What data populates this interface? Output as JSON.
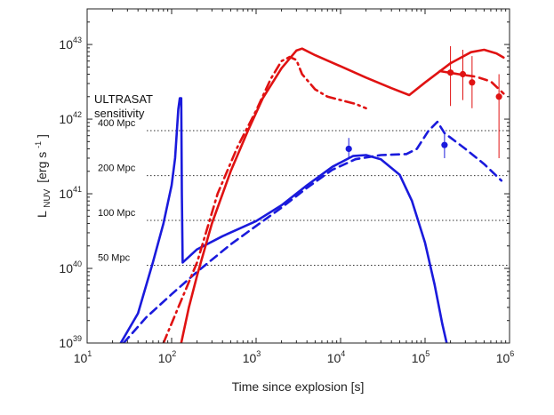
{
  "chart_data": {
    "type": "line",
    "title": "",
    "xlabel": "Time since explosion [s]",
    "ylabel_main": "L",
    "ylabel_sub": "NUV",
    "ylabel_units": "[erg s",
    "ylabel_units_exp": "-1",
    "ylabel_units_close": "]",
    "x_scale": "log",
    "y_scale": "log",
    "xlim": [
      10,
      1000000
    ],
    "ylim": [
      1e+39,
      3e+43
    ],
    "x_ticks": [
      {
        "value": 10,
        "base": "10",
        "exp": "1"
      },
      {
        "value": 100,
        "base": "10",
        "exp": "2"
      },
      {
        "value": 1000,
        "base": "10",
        "exp": "3"
      },
      {
        "value": 10000,
        "base": "10",
        "exp": "4"
      },
      {
        "value": 100000,
        "base": "10",
        "exp": "5"
      },
      {
        "value": 1000000,
        "base": "10",
        "exp": "6"
      }
    ],
    "y_ticks": [
      {
        "value": 1e+39,
        "base": "10",
        "exp": "39"
      },
      {
        "value": 1e+40,
        "base": "10",
        "exp": "40"
      },
      {
        "value": 1e+41,
        "base": "10",
        "exp": "41"
      },
      {
        "value": 1e+42,
        "base": "10",
        "exp": "42"
      },
      {
        "value": 1e+43,
        "base": "10",
        "exp": "43"
      }
    ],
    "sensitivity_title_line1": "ULTRASAT",
    "sensitivity_title_line2": "sensitivity",
    "sensitivity_lines": [
      {
        "label": "400 Mpc",
        "y": 7e+41
      },
      {
        "label": "200 Mpc",
        "y": 1.75e+41
      },
      {
        "label": "100 Mpc",
        "y": 4.4e+40
      },
      {
        "label": "50 Mpc",
        "y": 1.1e+40
      }
    ],
    "series": [
      {
        "name": "blue-solid",
        "color": "#1a1adc",
        "style": "solid",
        "points": [
          [
            25,
            1e+39
          ],
          [
            40,
            2.5e+39
          ],
          [
            60,
            1.2e+40
          ],
          [
            80,
            4e+40
          ],
          [
            100,
            1.3e+41
          ],
          [
            110,
            3e+41
          ],
          [
            120,
            1.35e+42
          ],
          [
            125,
            1.9e+42
          ],
          [
            130,
            1.9e+42
          ],
          [
            132,
            1e+41
          ],
          [
            135,
            1.2e+40
          ],
          [
            200,
            1.8e+40
          ],
          [
            400,
            2.7e+40
          ],
          [
            1000,
            4.3e+40
          ],
          [
            2000,
            7e+40
          ],
          [
            4000,
            1.3e+41
          ],
          [
            8000,
            2.3e+41
          ],
          [
            14000,
            3.2e+41
          ],
          [
            20000,
            3.3e+41
          ],
          [
            30000,
            2.9e+41
          ],
          [
            50000,
            1.8e+41
          ],
          [
            70000,
            8e+40
          ],
          [
            100000,
            2.2e+40
          ],
          [
            130000,
            6e+39
          ],
          [
            160000,
            1.8e+39
          ],
          [
            180000,
            1e+39
          ]
        ]
      },
      {
        "name": "blue-dashed",
        "color": "#1a1adc",
        "style": "dashed",
        "points": [
          [
            27,
            1e+39
          ],
          [
            50,
            2.2e+39
          ],
          [
            100,
            4.5e+39
          ],
          [
            200,
            9e+39
          ],
          [
            500,
            2.1e+40
          ],
          [
            1000,
            3.7e+40
          ],
          [
            2000,
            6.5e+40
          ],
          [
            4000,
            1.2e+41
          ],
          [
            8000,
            2.1e+41
          ],
          [
            15000,
            2.9e+41
          ],
          [
            30000,
            3.3e+41
          ],
          [
            60000,
            3.4e+41
          ],
          [
            80000,
            4e+41
          ],
          [
            110000,
            7e+41
          ],
          [
            140000,
            9.2e+41
          ],
          [
            170000,
            6.5e+41
          ],
          [
            300000,
            4e+41
          ],
          [
            500000,
            2.5e+41
          ],
          [
            800000,
            1.5e+41
          ]
        ]
      },
      {
        "name": "red-solid",
        "color": "#e01212",
        "style": "solid",
        "points": [
          [
            130,
            1e+39
          ],
          [
            160,
            3e+39
          ],
          [
            200,
            8e+39
          ],
          [
            300,
            4e+40
          ],
          [
            500,
            2e+41
          ],
          [
            800,
            7e+41
          ],
          [
            1200,
            1.9e+42
          ],
          [
            2000,
            4.8e+42
          ],
          [
            3000,
            8.3e+42
          ],
          [
            3500,
            8.8e+42
          ],
          [
            5000,
            7.2e+42
          ],
          [
            10000,
            5.1e+42
          ],
          [
            20000,
            3.6e+42
          ],
          [
            40000,
            2.6e+42
          ],
          [
            65000,
            2.1e+42
          ],
          [
            100000,
            3.1e+42
          ],
          [
            200000,
            5.6e+42
          ],
          [
            350000,
            7.9e+42
          ],
          [
            500000,
            8.5e+42
          ],
          [
            700000,
            7.6e+42
          ],
          [
            850000,
            6.7e+42
          ]
        ]
      },
      {
        "name": "red-dashdot",
        "color": "#e01212",
        "style": "dashdot",
        "points": [
          [
            80,
            1e+39
          ],
          [
            120,
            3e+39
          ],
          [
            200,
            1.2e+40
          ],
          [
            350,
            1e+41
          ],
          [
            600,
            4.2e+41
          ],
          [
            1000,
            1.3e+42
          ],
          [
            1500,
            3.5e+42
          ],
          [
            2000,
            6e+42
          ],
          [
            2500,
            6.8e+42
          ],
          [
            3000,
            6.2e+42
          ],
          [
            3500,
            4e+42
          ],
          [
            5000,
            2.5e+42
          ],
          [
            7000,
            2e+42
          ],
          [
            10000,
            1.8e+42
          ],
          [
            15000,
            1.6e+42
          ],
          [
            20000,
            1.4e+42
          ]
        ]
      },
      {
        "name": "red-dashed",
        "color": "#e01212",
        "style": "dashed",
        "points": [
          [
            150000,
            4.4e+42
          ],
          [
            250000,
            4e+42
          ],
          [
            400000,
            3.7e+42
          ],
          [
            600000,
            3.2e+42
          ],
          [
            850000,
            2.2e+42
          ]
        ]
      }
    ],
    "data_points": [
      {
        "series": "blue",
        "x": 12500,
        "y": 4e+41,
        "y_low": 2.9e+41,
        "y_high": 5.6e+41
      },
      {
        "series": "blue",
        "x": 170000,
        "y": 4.5e+41,
        "y_low": 3e+41,
        "y_high": 6.5e+41
      },
      {
        "series": "red",
        "x": 200000,
        "y": 4.2e+42,
        "y_low": 1.5e+42,
        "y_high": 9.5e+42
      },
      {
        "series": "red",
        "x": 280000,
        "y": 4e+42,
        "y_low": 1.8e+42,
        "y_high": 8.5e+42
      },
      {
        "series": "red",
        "x": 360000,
        "y": 3.1e+42,
        "y_low": 1.4e+42,
        "y_high": 7e+42
      },
      {
        "series": "red",
        "x": 750000,
        "y": 2e+42,
        "y_low": 3e+41,
        "y_high": 4e+42
      }
    ],
    "grid": false,
    "legend": "none"
  }
}
